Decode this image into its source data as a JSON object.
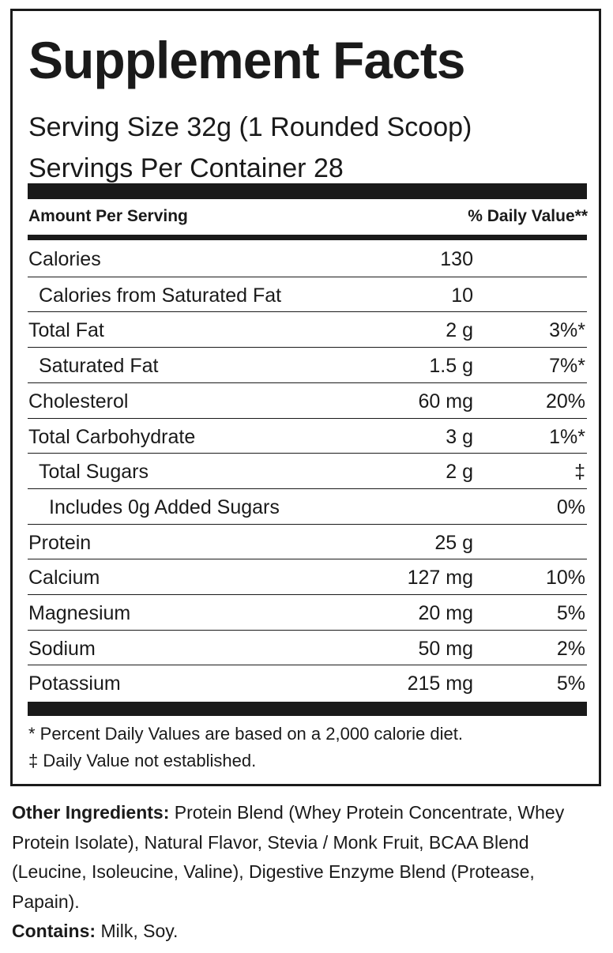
{
  "title": "Supplement Facts",
  "serving_size": "Serving Size 32g (1 Rounded Scoop)",
  "servings_per_container": "Servings Per Container  28",
  "header": {
    "amount": "Amount Per Serving",
    "daily_value": "% Daily Value**"
  },
  "rows": [
    {
      "name": "Calories",
      "amount": "130",
      "level": 0
    },
    {
      "name": "Calories from Saturated Fat",
      "amount": "10",
      "level": 1
    },
    {
      "name": "Total Fat",
      "amount": "2 g",
      "dv": "3%*",
      "level": 0
    },
    {
      "name": "Saturated Fat",
      "amount": "1.5 g",
      "dv": "7%*",
      "level": 1
    },
    {
      "name": "Cholesterol",
      "amount": "60 mg",
      "dv": "20%",
      "level": 0
    },
    {
      "name": "Total Carbohydrate",
      "amount": "3 g",
      "dv": "1%*",
      "level": 0
    },
    {
      "name": "Total Sugars",
      "amount": "2 g",
      "dv": "‡",
      "level": 1
    },
    {
      "name": "Includes 0g Added Sugars",
      "dv": "0%",
      "level": 2
    },
    {
      "name": "Protein",
      "amount": "25 g",
      "level": 0
    },
    {
      "name": "Calcium",
      "amount": "127 mg",
      "dv": "10%",
      "level": 0
    },
    {
      "name": "Magnesium",
      "amount": "20 mg",
      "dv": "5%",
      "level": 0
    },
    {
      "name": "Sodium",
      "amount": "50 mg",
      "dv": "2%",
      "level": 0
    },
    {
      "name": "Potassium",
      "amount": "215 mg",
      "dv": "5%",
      "level": 0
    }
  ],
  "footnotes": [
    "* Percent Daily Values are based on a 2,000 calorie diet.",
    "‡ Daily Value not established."
  ],
  "other_ingredients": {
    "label": "Other Ingredients:",
    "text": "Protein Blend (Whey Protein Concentrate, Whey Protein Isolate), Natural Flavor, Stevia / Monk Fruit, BCAA Blend (Leucine, Isoleucine, Valine), Digestive Enzyme Blend (Protease, Papain)."
  },
  "contains": {
    "label": "Contains:",
    "text": "Milk, Soy."
  }
}
